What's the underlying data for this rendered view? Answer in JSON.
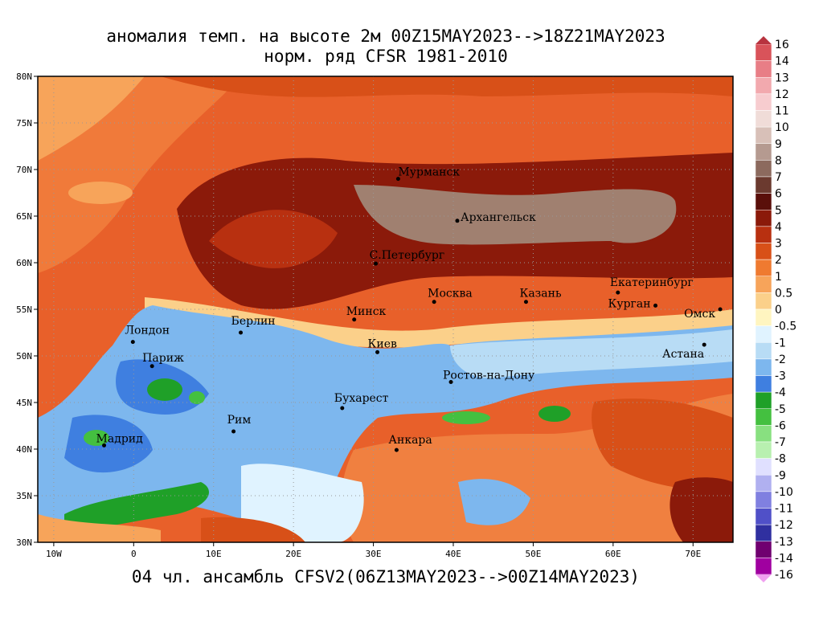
{
  "title": "аномалия темп. на высоте 2м 00Z15MAY2023-->18Z21MAY2023",
  "subtitle": "норм. ряд CFSR 1981-2010",
  "caption": "04 чл. ансамбль CFSV2(06Z13MAY2023-->00Z14MAY2023)",
  "map": {
    "xlim": [
      -12,
      75
    ],
    "ylim": [
      30,
      80
    ],
    "xticks": [
      {
        "value": -10,
        "label": "10W"
      },
      0,
      {
        "value": 10,
        "label": "10E"
      },
      {
        "value": 20,
        "label": "20E"
      },
      {
        "value": 30,
        "label": "30E"
      },
      {
        "value": 40,
        "label": "40E"
      },
      {
        "value": 50,
        "label": "50E"
      },
      {
        "value": 60,
        "label": "60E"
      },
      {
        "value": 70,
        "label": "70E"
      }
    ],
    "yticks": [
      {
        "value": 30,
        "label": "30N"
      },
      {
        "value": 35,
        "label": "35N"
      },
      {
        "value": 40,
        "label": "40N"
      },
      {
        "value": 45,
        "label": "45N"
      },
      {
        "value": 50,
        "label": "50N"
      },
      {
        "value": 55,
        "label": "55N"
      },
      {
        "value": 60,
        "label": "60N"
      },
      {
        "value": 65,
        "label": "65N"
      },
      {
        "value": 70,
        "label": "70N"
      },
      {
        "value": 75,
        "label": "75N"
      },
      {
        "value": 80,
        "label": "80N"
      }
    ],
    "cities": [
      {
        "name": "Мурманск",
        "lon": 33.1,
        "lat": 69
      },
      {
        "name": "Архангельск",
        "lon": 40.5,
        "lat": 64.5
      },
      {
        "name": "С.Петербург",
        "lon": 30.3,
        "lat": 59.9
      },
      {
        "name": "Москва",
        "lon": 37.6,
        "lat": 55.8
      },
      {
        "name": "Казань",
        "lon": 49.1,
        "lat": 55.8
      },
      {
        "name": "Екатеринбург",
        "lon": 60.6,
        "lat": 56.8
      },
      {
        "name": "Курган",
        "lon": 65.3,
        "lat": 55.4
      },
      {
        "name": "Омск",
        "lon": 73.4,
        "lat": 55
      },
      {
        "name": "Астана",
        "lon": 71.4,
        "lat": 51.2
      },
      {
        "name": "Минск",
        "lon": 27.6,
        "lat": 53.9
      },
      {
        "name": "Киев",
        "lon": 30.5,
        "lat": 50.4
      },
      {
        "name": "Берлин",
        "lon": 13.4,
        "lat": 52.5
      },
      {
        "name": "Лондон",
        "lon": -0.1,
        "lat": 51.5
      },
      {
        "name": "Париж",
        "lon": 2.3,
        "lat": 48.9
      },
      {
        "name": "Ростов-на-Дону",
        "lon": 39.7,
        "lat": 47.2
      },
      {
        "name": "Бухарест",
        "lon": 26.1,
        "lat": 44.4
      },
      {
        "name": "Рим",
        "lon": 12.5,
        "lat": 41.9
      },
      {
        "name": "Мадрид",
        "lon": -3.7,
        "lat": 40.4
      },
      {
        "name": "Анкара",
        "lon": 32.9,
        "lat": 39.9
      }
    ]
  },
  "colorbar": {
    "levels": [
      16,
      14,
      13,
      12,
      11,
      10,
      9,
      8,
      7,
      6,
      5,
      4,
      3,
      2,
      1,
      0.5,
      0,
      -0.5,
      -1,
      -2,
      -3,
      -4,
      -5,
      -6,
      -7,
      -8,
      -9,
      -10,
      -11,
      -12,
      -13,
      -14,
      -16
    ],
    "colors": [
      "#d9535a",
      "#e87e86",
      "#f2a9ae",
      "#f7cccf",
      "#f0dcd8",
      "#d8c0b8",
      "#b59a90",
      "#8c6a5e",
      "#6b3a2f",
      "#5a0f0a",
      "#8b1a0a",
      "#b83010",
      "#d85018",
      "#ef7a30",
      "#f7a45a",
      "#fbd08a",
      "#fff5c0",
      "#e0f3ff",
      "#b8dcf5",
      "#7db7ee",
      "#3f7fe0",
      "#1fa028",
      "#44c040",
      "#88e080",
      "#b8f0b0",
      "#e0e0ff",
      "#b0b0f0",
      "#8080e0",
      "#5050c8",
      "#3030a0",
      "#700070",
      "#a000a0"
    ],
    "over_color": "#b8333f",
    "under_color": "#f0a0f0"
  }
}
